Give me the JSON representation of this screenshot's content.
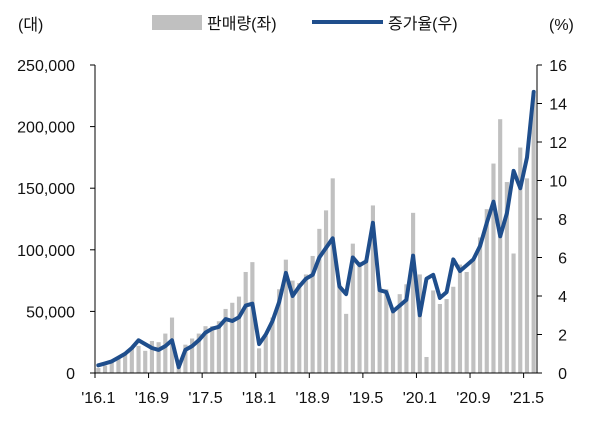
{
  "chart_data": {
    "type": "bar+line",
    "left_unit": "(대)",
    "right_unit": "(%)",
    "legend": {
      "bar_label": "판매량(좌)",
      "line_label": "증가율(우)",
      "placement": "top"
    },
    "x_tick_labels": [
      "'16.1",
      "'16.9",
      "'17.5",
      "'18.1",
      "'18.9",
      "'19.5",
      "'20.1",
      "'20.9",
      "'21.5"
    ],
    "x_tick_every": 8,
    "y_left": {
      "min": 0,
      "max": 250000,
      "ticks": [
        "0",
        "50,000",
        "100,000",
        "150,000",
        "200,000",
        "250,000"
      ]
    },
    "y_right": {
      "min": 0,
      "max": 16,
      "ticks": [
        "0",
        "2",
        "4",
        "6",
        "8",
        "10",
        "12",
        "14",
        "16"
      ]
    },
    "colors": {
      "bar": "#c0c0c0",
      "line": "#1f4e8c",
      "axis": "#000000"
    },
    "months": [
      "2016-01",
      "2016-02",
      "2016-03",
      "2016-04",
      "2016-05",
      "2016-06",
      "2016-07",
      "2016-08",
      "2016-09",
      "2016-10",
      "2016-11",
      "2016-12",
      "2017-01",
      "2017-02",
      "2017-03",
      "2017-04",
      "2017-05",
      "2017-06",
      "2017-07",
      "2017-08",
      "2017-09",
      "2017-10",
      "2017-11",
      "2017-12",
      "2018-01",
      "2018-02",
      "2018-03",
      "2018-04",
      "2018-05",
      "2018-06",
      "2018-07",
      "2018-08",
      "2018-09",
      "2018-10",
      "2018-11",
      "2018-12",
      "2019-01",
      "2019-02",
      "2019-03",
      "2019-04",
      "2019-05",
      "2019-06",
      "2019-07",
      "2019-08",
      "2019-09",
      "2019-10",
      "2019-11",
      "2019-12",
      "2020-01",
      "2020-02",
      "2020-03",
      "2020-04",
      "2020-05",
      "2020-06",
      "2020-07",
      "2020-08",
      "2020-09",
      "2020-10",
      "2020-11",
      "2020-12",
      "2021-01",
      "2021-02",
      "2021-03",
      "2021-04",
      "2021-05",
      "2021-06"
    ],
    "sales": [
      4000,
      6000,
      9000,
      13000,
      15000,
      20000,
      22000,
      18000,
      26000,
      25000,
      32000,
      45000,
      5000,
      23000,
      28000,
      32000,
      38000,
      38000,
      42000,
      52000,
      57000,
      62000,
      82000,
      90000,
      20000,
      30000,
      45000,
      68000,
      92000,
      75000,
      73000,
      80000,
      95000,
      117000,
      132000,
      158000,
      70000,
      48000,
      105000,
      90000,
      92000,
      136000,
      70000,
      68000,
      52000,
      64000,
      72000,
      130000,
      80000,
      13000,
      67000,
      56000,
      60000,
      70000,
      88000,
      82000,
      92000,
      110000,
      133000,
      170000,
      206000,
      155000,
      97000,
      183000,
      158000,
      226000
    ],
    "growth": [
      0.4,
      0.5,
      0.6,
      0.8,
      1.0,
      1.3,
      1.7,
      1.5,
      1.3,
      1.2,
      1.4,
      1.7,
      0.3,
      1.2,
      1.4,
      1.7,
      2.1,
      2.3,
      2.4,
      2.8,
      2.7,
      2.9,
      3.5,
      3.6,
      1.5,
      2.0,
      2.7,
      3.7,
      5.2,
      4.0,
      4.5,
      4.9,
      5.1,
      6.0,
      6.5,
      7.0,
      4.5,
      4.1,
      6.0,
      5.6,
      5.8,
      7.8,
      4.3,
      4.2,
      3.2,
      3.5,
      3.8,
      6.1,
      3.0,
      4.9,
      5.1,
      3.9,
      4.2,
      5.9,
      5.3,
      5.6,
      5.9,
      6.6,
      7.8,
      8.9,
      7.1,
      8.3,
      10.5,
      9.6,
      11.2,
      14.6
    ]
  }
}
